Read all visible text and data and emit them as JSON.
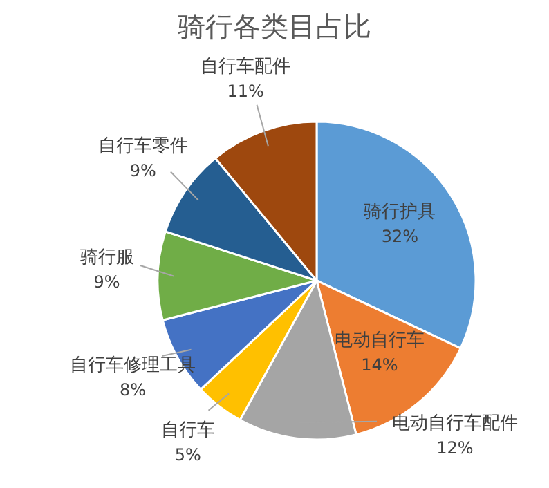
{
  "chart_data": {
    "type": "pie",
    "title": "骑行各类目占比",
    "categories": [
      "骑行护具",
      "电动自行车",
      "电动自行车配件",
      "自行车",
      "自行车修理工具",
      "骑行服",
      "自行车零件",
      "自行车配件"
    ],
    "values": [
      32,
      14,
      12,
      5,
      8,
      9,
      9,
      11
    ],
    "colors": [
      "#5b9bd5",
      "#ed7d31",
      "#a5a5a5",
      "#ffc000",
      "#4472c4",
      "#70ad47",
      "#255e91",
      "#9e480e"
    ],
    "value_labels": [
      "32%",
      "14%",
      "12%",
      "5%",
      "8%",
      "9%",
      "9%",
      "11%"
    ],
    "legend": false
  }
}
